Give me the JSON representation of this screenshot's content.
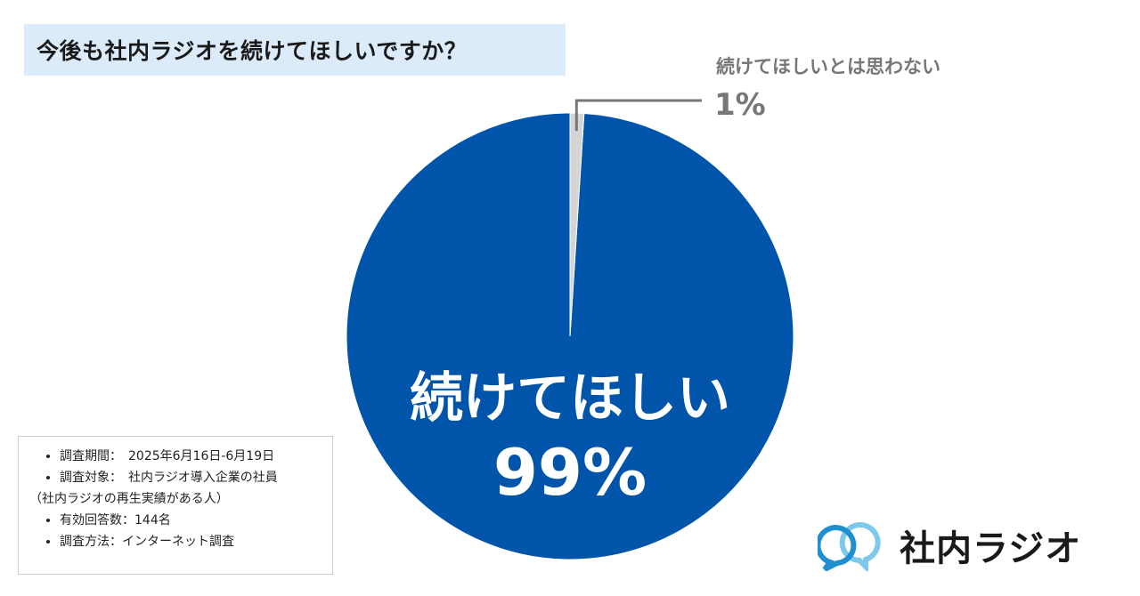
{
  "title": "今後も社内ラジオを続けてほしいですか？",
  "chart_data": {
    "type": "pie",
    "title": "今後も社内ラジオを続けてほしいですか？",
    "slices": [
      {
        "label": "続けてほしい",
        "value": 99,
        "value_label": "99%",
        "color": "#0055aa"
      },
      {
        "label": "続けてほしいとは思わない",
        "value": 1,
        "value_label": "1%",
        "color": "#d5d5d5"
      }
    ],
    "start_angle_deg": 0,
    "direction": "counterclockwise",
    "label_colors": {
      "inside": "#ffffff",
      "outside": "#777777"
    }
  },
  "survey_info": {
    "period": "調査期間：　2025年6月16日-6月19日",
    "target": "調査対象：　社内ラジオ導入企業の社員",
    "target_note": "（社内ラジオの再生実績がある人）",
    "respondents": "有効回答数：144名",
    "method": "調査方法：インターネット調査"
  },
  "logo": {
    "text": "社内ラジオ",
    "icon": "speech-bubbles-icon",
    "colors": {
      "front": "#1f8fd0",
      "back": "#7ec8ec"
    }
  }
}
